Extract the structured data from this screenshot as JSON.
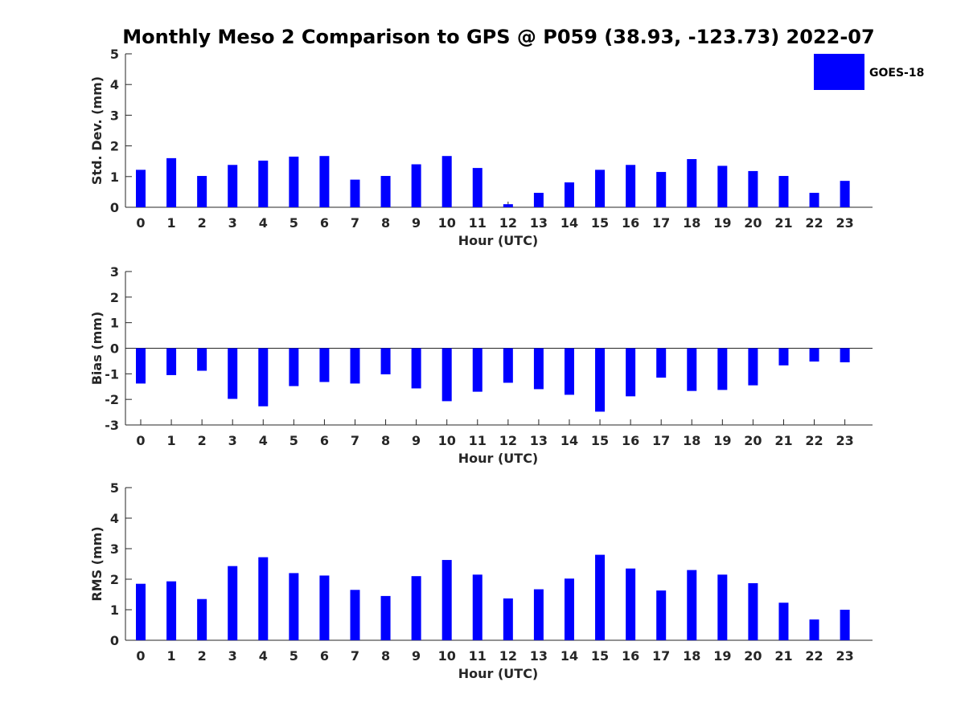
{
  "title": "Monthly Meso 2 Comparison to GPS @ P059 (38.93, -123.73) 2022-07",
  "legend": {
    "label": "GOES-18",
    "color": "#0000ff",
    "placement": "top-right"
  },
  "chart_data": [
    {
      "type": "bar",
      "xlabel": "Hour (UTC)",
      "ylabel": "Std. Dev. (mm)",
      "ylim": [
        0,
        5
      ],
      "yticks": [
        "0",
        "1",
        "2",
        "3",
        "4",
        "5"
      ],
      "categories": [
        "0",
        "1",
        "2",
        "3",
        "4",
        "5",
        "6",
        "7",
        "8",
        "9",
        "10",
        "11",
        "12",
        "13",
        "14",
        "15",
        "16",
        "17",
        "18",
        "19",
        "20",
        "21",
        "22",
        "23"
      ],
      "series": [
        {
          "name": "GOES-18",
          "color": "#0000ff",
          "values": [
            1.22,
            1.6,
            1.02,
            1.38,
            1.52,
            1.65,
            1.67,
            0.9,
            1.02,
            1.4,
            1.67,
            1.28,
            0.1,
            0.47,
            0.81,
            1.22,
            1.38,
            1.15,
            1.57,
            1.35,
            1.18,
            1.02,
            0.47,
            0.86
          ]
        }
      ]
    },
    {
      "type": "bar",
      "xlabel": "Hour (UTC)",
      "ylabel": "Bias (mm)",
      "ylim": [
        -3,
        3
      ],
      "yticks": [
        "-3",
        "-2",
        "-1",
        "0",
        "1",
        "2",
        "3"
      ],
      "categories": [
        "0",
        "1",
        "2",
        "3",
        "4",
        "5",
        "6",
        "7",
        "8",
        "9",
        "10",
        "11",
        "12",
        "13",
        "14",
        "15",
        "16",
        "17",
        "18",
        "19",
        "20",
        "21",
        "22",
        "23"
      ],
      "series": [
        {
          "name": "GOES-18",
          "color": "#0000ff",
          "values": [
            -1.38,
            -1.05,
            -0.88,
            -1.98,
            -2.27,
            -1.48,
            -1.32,
            -1.38,
            -1.02,
            -1.57,
            -2.07,
            -1.7,
            -1.35,
            -1.6,
            -1.82,
            -2.48,
            -1.88,
            -1.15,
            -1.67,
            -1.63,
            -1.45,
            -0.67,
            -0.52,
            -0.55
          ]
        }
      ]
    },
    {
      "type": "bar",
      "xlabel": "Hour (UTC)",
      "ylabel": "RMS (mm)",
      "ylim": [
        0,
        5
      ],
      "yticks": [
        "0",
        "1",
        "2",
        "3",
        "4",
        "5"
      ],
      "categories": [
        "0",
        "1",
        "2",
        "3",
        "4",
        "5",
        "6",
        "7",
        "8",
        "9",
        "10",
        "11",
        "12",
        "13",
        "14",
        "15",
        "16",
        "17",
        "18",
        "19",
        "20",
        "21",
        "22",
        "23"
      ],
      "series": [
        {
          "name": "GOES-18",
          "color": "#0000ff",
          "values": [
            1.85,
            1.93,
            1.35,
            2.43,
            2.72,
            2.2,
            2.12,
            1.65,
            1.45,
            2.1,
            2.63,
            2.15,
            1.37,
            1.67,
            2.02,
            2.8,
            2.35,
            1.63,
            2.3,
            2.15,
            1.87,
            1.23,
            0.68,
            1.0
          ]
        }
      ]
    }
  ]
}
